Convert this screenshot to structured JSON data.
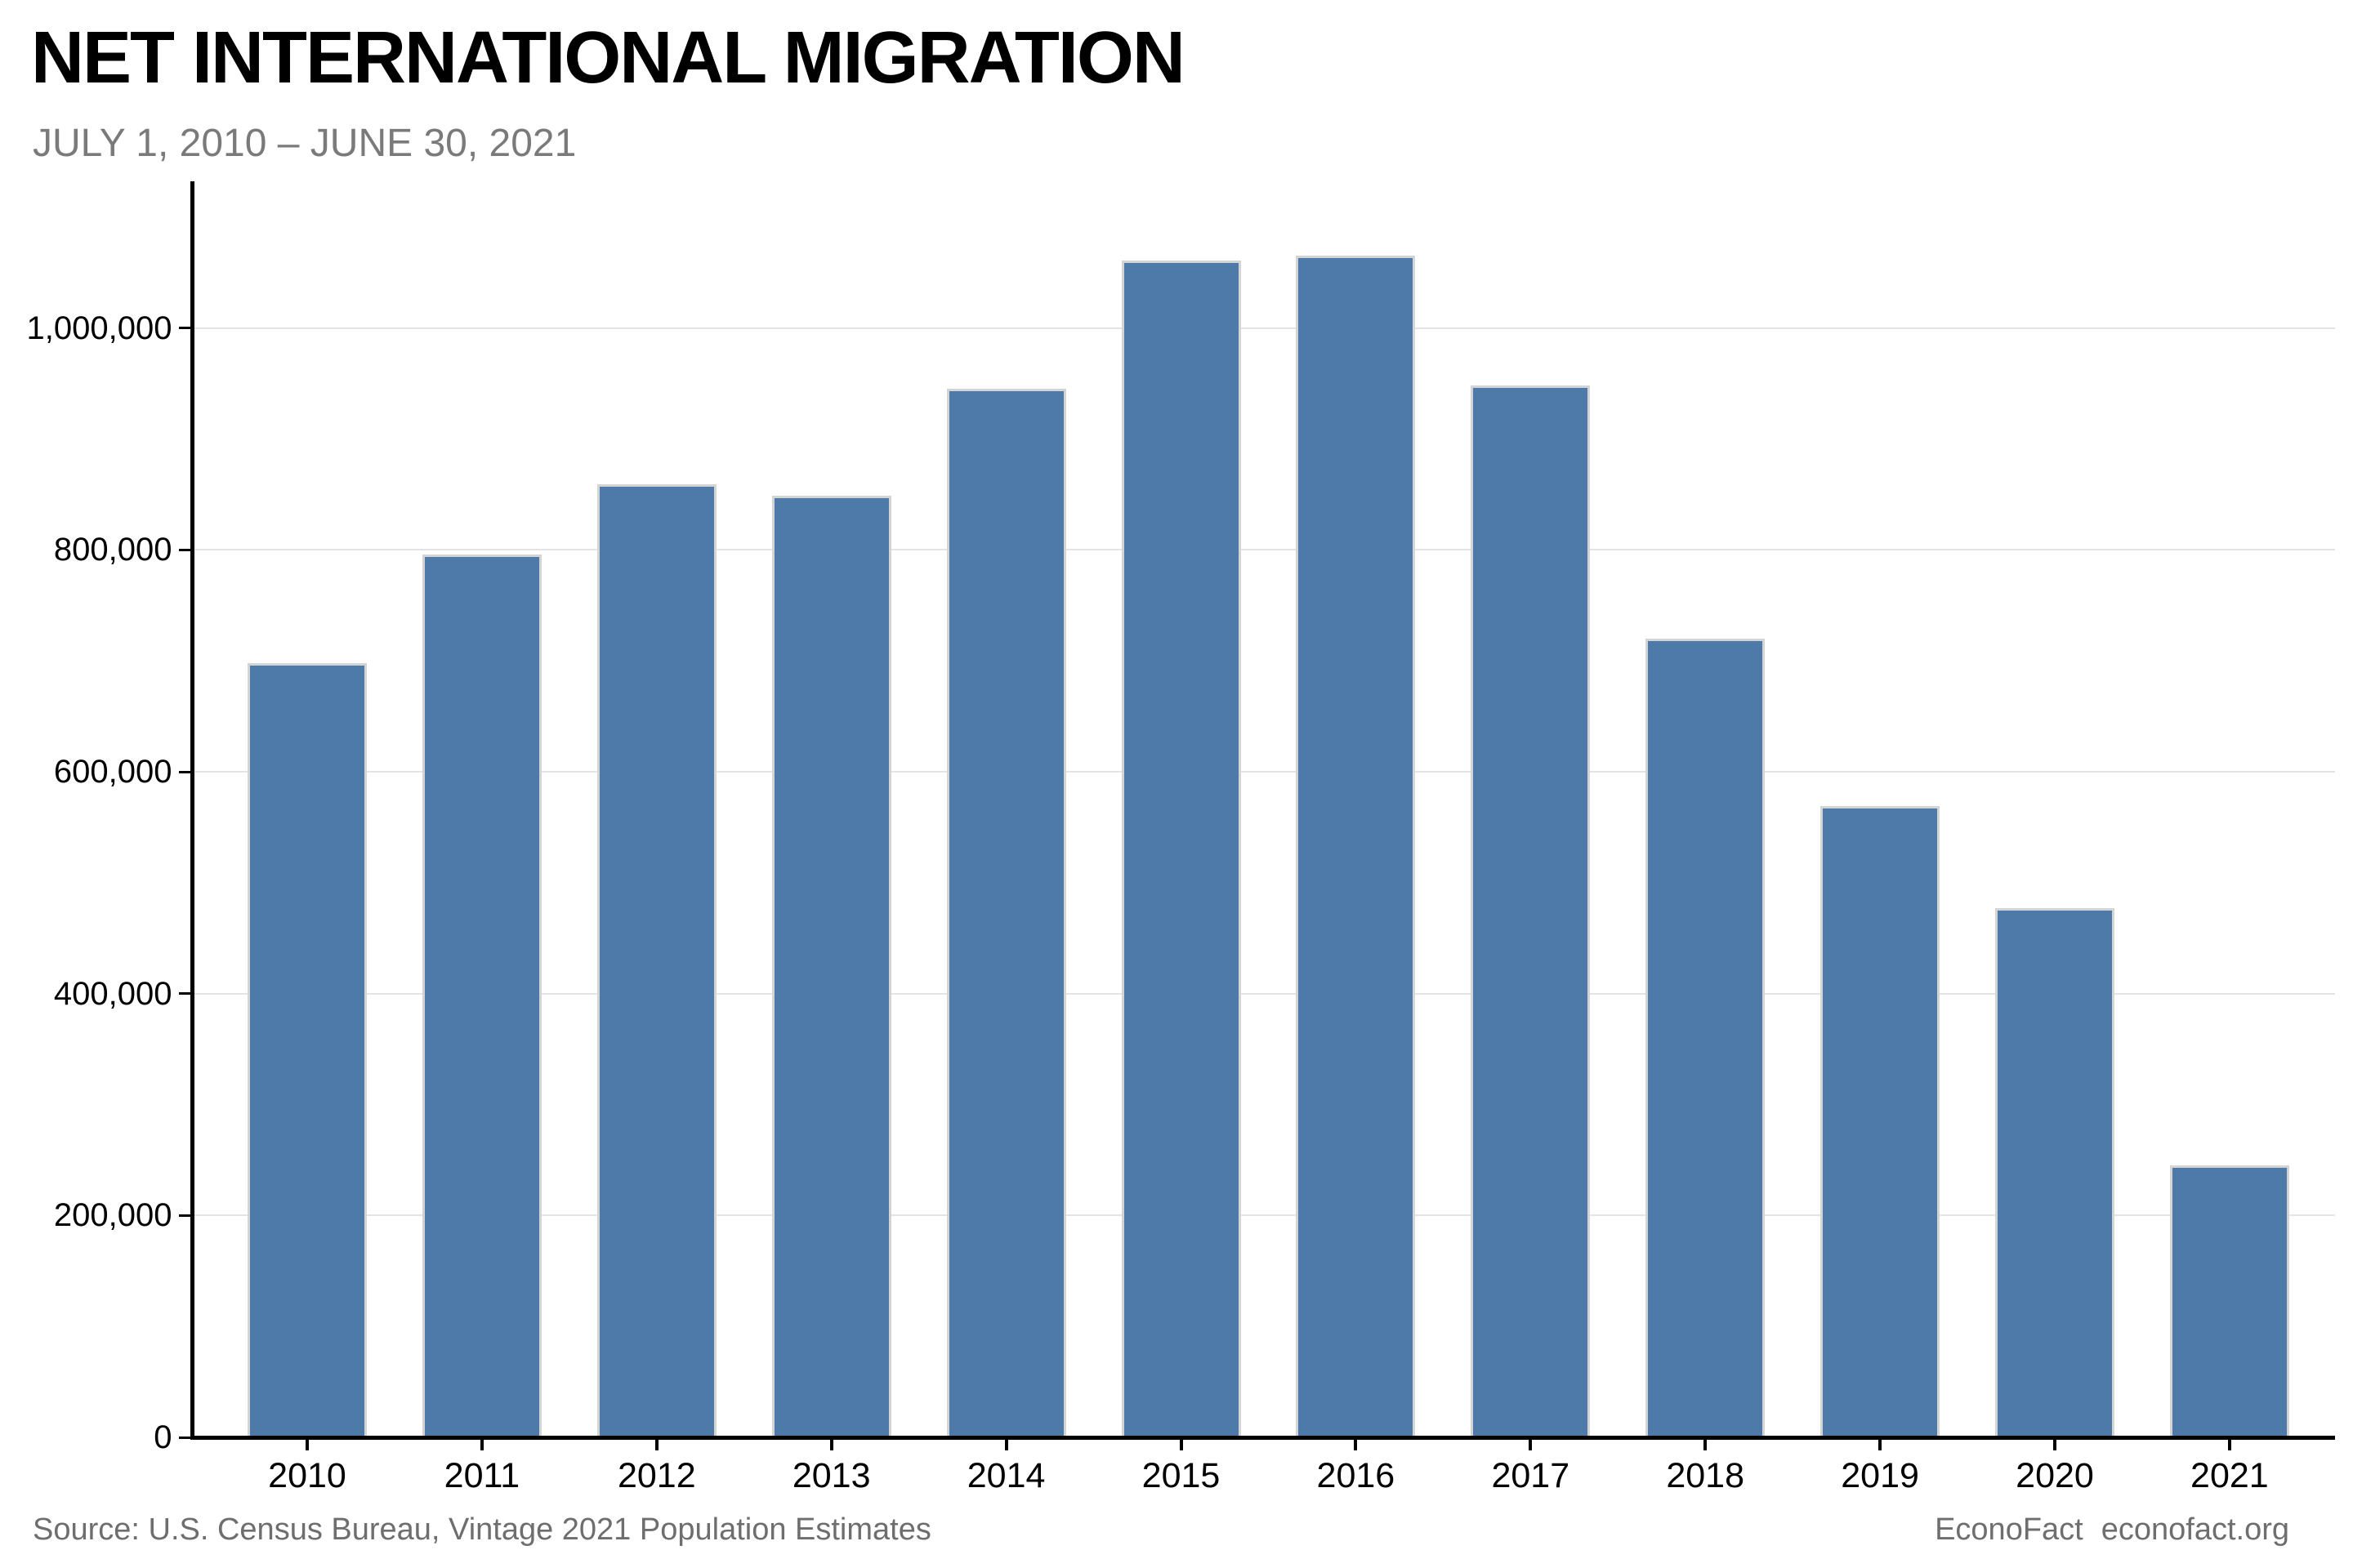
{
  "header": {
    "title": "NET INTERNATIONAL MIGRATION",
    "subtitle": "JULY 1, 2010 – JUNE 30, 2021"
  },
  "footer": {
    "source": "Source: U.S. Census Bureau, Vintage 2021 Population Estimates",
    "brand": "EconoFact",
    "site": "econofact.org"
  },
  "colors": {
    "bar_fill": "#4d7aa9",
    "bar_border": "#d4d4d4",
    "gridline": "#e4e4e4",
    "axis": "#000000",
    "subtitle_text": "#7a7a7a",
    "footer_text": "#6e6e6e"
  },
  "chart_data": {
    "type": "bar",
    "title": "NET INTERNATIONAL MIGRATION",
    "subtitle": "JULY 1, 2010 – JUNE 30, 2021",
    "categories": [
      "2010",
      "2011",
      "2012",
      "2013",
      "2014",
      "2015",
      "2016",
      "2017",
      "2018",
      "2019",
      "2020",
      "2021"
    ],
    "values": [
      698000,
      796000,
      859000,
      849000,
      945000,
      1061000,
      1065000,
      948000,
      720000,
      569000,
      477000,
      245000
    ],
    "xlabel": "",
    "ylabel": "",
    "ylim": [
      0,
      1130000
    ],
    "yticks": [
      0,
      200000,
      400000,
      600000,
      800000,
      1000000
    ],
    "ytick_labels": [
      "0",
      "200,000",
      "400,000",
      "600,000",
      "800,000",
      "1,000,000"
    ],
    "grid": "horizontal",
    "legend": "none"
  }
}
